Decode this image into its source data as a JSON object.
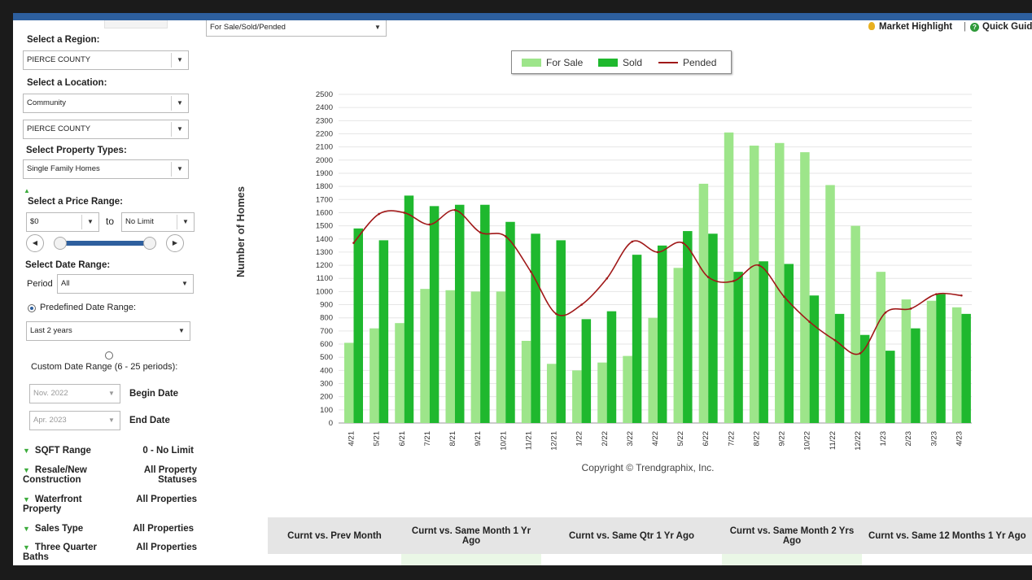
{
  "filter_bar": {
    "status_select": "For Sale/Sold/Pended"
  },
  "header": {
    "market_highlight": "Market Highlight",
    "separator": "|",
    "quick_guide": "Quick Guide"
  },
  "sidebar": {
    "region_label": "Select a Region:",
    "region_value": "PIERCE COUNTY",
    "location_label": "Select a Location:",
    "location_type": "Community",
    "location_value": "PIERCE COUNTY",
    "property_label": "Select Property Types:",
    "property_value": "Single Family Homes",
    "price_label": "Select a Price Range:",
    "price_min": "$0",
    "price_to": "to",
    "price_max": "No Limit",
    "date_label": "Select Date Range:",
    "period_label": "Period",
    "period_value": "All",
    "predefined_label": "Predefined Date Range:",
    "predefined_value": "Last 2 years",
    "custom_label": "Custom Date Range (6 - 25 periods):",
    "begin_value": "Nov. 2022",
    "begin_label": "Begin Date",
    "end_value": "Apr. 2023",
    "end_label": "End Date",
    "filters": [
      {
        "name": "SQFT Range",
        "value": "0 - No Limit"
      },
      {
        "name": "Resale/New Construction",
        "value": "All Property Statuses"
      },
      {
        "name": "Waterfront Property",
        "value": "All Properties"
      },
      {
        "name": "Sales Type",
        "value": "All Properties"
      },
      {
        "name": "Three Quarter Baths",
        "value": "All Properties"
      }
    ]
  },
  "chart_data": {
    "type": "bar",
    "ylabel": "Number of Homes",
    "ylim": [
      0,
      2500
    ],
    "yticks": [
      0,
      100,
      200,
      300,
      400,
      500,
      600,
      700,
      800,
      900,
      1000,
      1100,
      1200,
      1300,
      1400,
      1500,
      1600,
      1700,
      1800,
      1900,
      2000,
      2100,
      2200,
      2300,
      2400,
      2500
    ],
    "grid": true,
    "legend_position": "top-center",
    "categories": [
      "4/21",
      "5/21",
      "6/21",
      "7/21",
      "8/21",
      "9/21",
      "10/21",
      "11/21",
      "12/21",
      "1/22",
      "2/22",
      "3/22",
      "4/22",
      "5/22",
      "6/22",
      "7/22",
      "8/22",
      "9/22",
      "10/22",
      "11/22",
      "12/22",
      "1/23",
      "2/23",
      "3/23",
      "4/23"
    ],
    "series": [
      {
        "name": "For Sale",
        "kind": "bar",
        "color": "#9de58a",
        "values": [
          610,
          720,
          760,
          1020,
          1010,
          1000,
          1000,
          625,
          450,
          400,
          460,
          510,
          800,
          1180,
          1820,
          2210,
          2110,
          2130,
          2060,
          1810,
          1500,
          1150,
          940,
          930,
          880
        ]
      },
      {
        "name": "Sold",
        "kind": "bar",
        "color": "#1fb82e",
        "values": [
          1480,
          1390,
          1730,
          1650,
          1660,
          1660,
          1530,
          1440,
          1390,
          790,
          850,
          1280,
          1350,
          1460,
          1440,
          1150,
          1230,
          1210,
          970,
          830,
          670,
          550,
          720,
          980,
          830
        ]
      },
      {
        "name": "Pended",
        "kind": "line",
        "color": "#a01818",
        "values": [
          1370,
          1590,
          1600,
          1510,
          1620,
          1450,
          1420,
          1150,
          830,
          900,
          1100,
          1380,
          1300,
          1370,
          1110,
          1080,
          1200,
          960,
          770,
          630,
          530,
          840,
          870,
          980,
          970
        ]
      }
    ],
    "copyright": "Copyright © Trendgraphix, Inc."
  },
  "table": {
    "headers": [
      "Curnt vs. Prev Month",
      "Curnt vs. Same Month 1 Yr Ago",
      "Curnt vs. Same Qtr 1 Yr Ago",
      "Curnt vs. Same Month 2 Yrs Ago",
      "Curnt vs. Same 12 Months 1 Yr Ago"
    ]
  }
}
